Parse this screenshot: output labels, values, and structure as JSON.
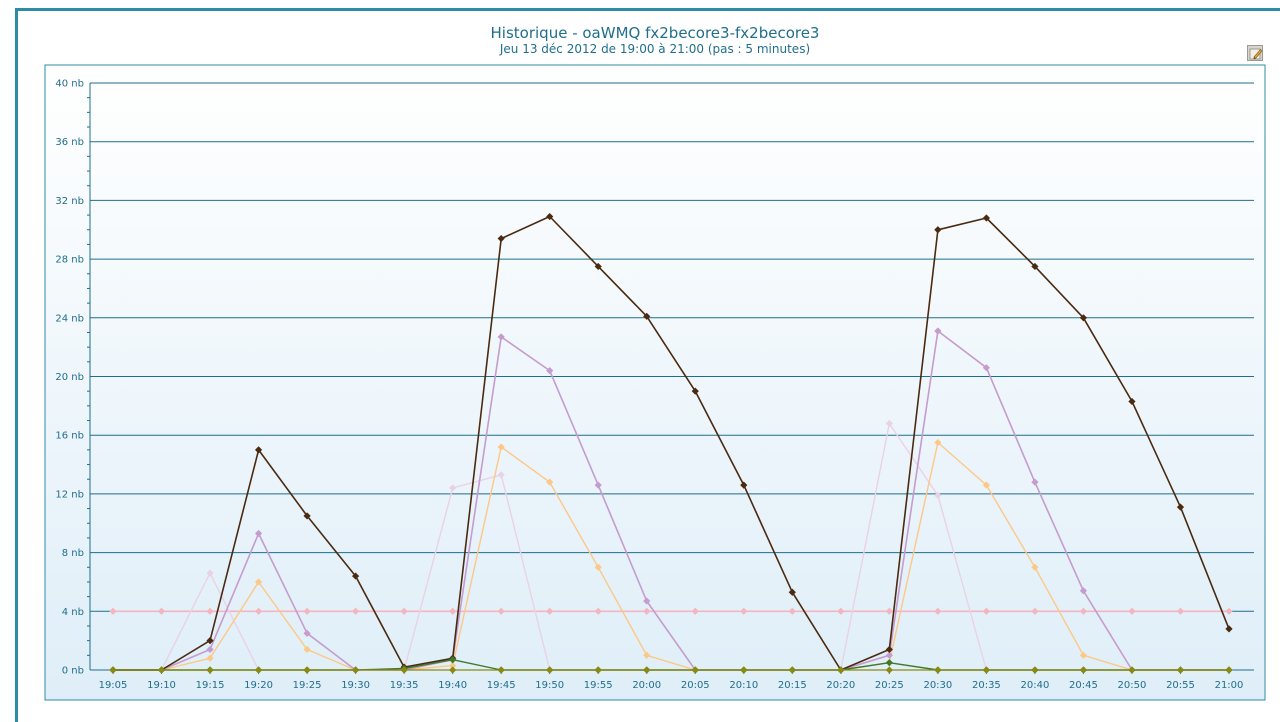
{
  "chart_data": {
    "type": "line",
    "title": "Historique - oaWMQ fx2becore3-fx2becore3",
    "subtitle": "Jeu 13 déc 2012 de 19:00 à 21:00  (pas : 5 minutes)",
    "x": [
      "19:05",
      "19:10",
      "19:15",
      "19:20",
      "19:25",
      "19:30",
      "19:35",
      "19:40",
      "19:45",
      "19:50",
      "19:55",
      "20:00",
      "20:05",
      "20:10",
      "20:15",
      "20:20",
      "20:25",
      "20:30",
      "20:35",
      "20:40",
      "20:45",
      "20:50",
      "20:55",
      "21:00"
    ],
    "yticks": [
      "0 nb",
      "4 nb",
      "8 nb",
      "12 nb",
      "16 nb",
      "20 nb",
      "24 nb",
      "28 nb",
      "32 nb",
      "36 nb",
      "40 nb"
    ],
    "ylim": [
      0,
      40
    ],
    "grid": true,
    "series": [
      {
        "color": "#f2b6bc",
        "width": 1.6,
        "values": [
          4,
          4,
          4,
          4,
          4,
          4,
          4,
          4,
          4,
          4,
          4,
          4,
          4,
          4,
          4,
          4,
          4,
          4,
          4,
          4,
          4,
          4,
          4,
          4
        ]
      },
      {
        "color": "#ead2e6",
        "width": 1.4,
        "values": [
          0,
          0,
          6.6,
          0,
          0,
          0,
          0,
          12.4,
          13.3,
          0,
          0,
          0,
          0,
          0,
          0,
          0,
          16.8,
          11.9,
          0,
          0,
          0,
          0,
          0,
          0
        ]
      },
      {
        "color": "#fcc888",
        "width": 1.4,
        "values": [
          0,
          0,
          0.8,
          6,
          1.4,
          0,
          0,
          0.3,
          15.2,
          12.8,
          7,
          1,
          0,
          0,
          0,
          0,
          0.5,
          15.5,
          12.6,
          7,
          1,
          0,
          0,
          0
        ]
      },
      {
        "color": "#c59ccd",
        "width": 1.6,
        "values": [
          0,
          0,
          1.4,
          9.3,
          2.5,
          0,
          0,
          0.7,
          22.7,
          20.4,
          12.6,
          4.7,
          0,
          0,
          0,
          0,
          1,
          23.1,
          20.6,
          12.8,
          5.4,
          0,
          0,
          0
        ]
      },
      {
        "color": "#4a2a10",
        "width": 1.6,
        "values": [
          0,
          0,
          2,
          15,
          10.5,
          6.4,
          0.2,
          0.8,
          29.4,
          30.9,
          27.5,
          24.1,
          19,
          12.6,
          5.3,
          0,
          1.4,
          30,
          30.8,
          27.5,
          24,
          18.3,
          11.1,
          2.8
        ]
      },
      {
        "color": "#3f7a2a",
        "width": 1.4,
        "values": [
          0,
          0,
          0,
          0,
          0,
          0,
          0.1,
          0.7,
          0,
          0,
          0,
          0,
          0,
          0,
          0,
          0,
          0.5,
          0,
          0,
          0,
          0,
          0,
          0,
          0
        ]
      },
      {
        "color": "#8a8a10",
        "width": 1.2,
        "values": [
          0,
          0,
          0,
          0,
          0,
          0,
          0,
          0,
          0,
          0,
          0,
          0,
          0,
          0,
          0,
          0,
          0,
          0,
          0,
          0,
          0,
          0,
          0,
          0
        ]
      }
    ]
  }
}
